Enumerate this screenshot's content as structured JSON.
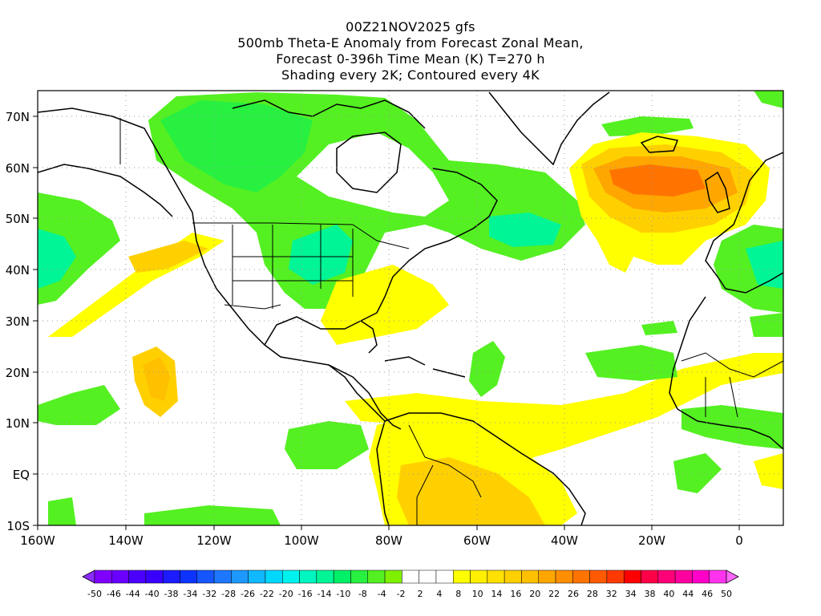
{
  "title": {
    "lines": [
      "00Z21NOV2025 gfs",
      "500mb Theta-E Anomaly from Forecast Zonal Mean,",
      "Forecast 0-396h Time Mean (K) T=270 h",
      "Shading every 2K; Contoured every 4K"
    ]
  },
  "axes": {
    "lat_labels": [
      "70N",
      "60N",
      "50N",
      "40N",
      "30N",
      "20N",
      "10N",
      "EQ",
      "10S"
    ],
    "lon_labels": [
      "160W",
      "140W",
      "120W",
      "100W",
      "80W",
      "60W",
      "40W",
      "20W",
      "0"
    ]
  },
  "colorbar": {
    "labels": [
      "-50",
      "-46",
      "-44",
      "-40",
      "-38",
      "-34",
      "-32",
      "-28",
      "-26",
      "-22",
      "-20",
      "-16",
      "-14",
      "-10",
      "-8",
      "-4",
      "-2",
      "2",
      "4",
      "8",
      "10",
      "14",
      "16",
      "20",
      "22",
      "26",
      "28",
      "32",
      "34",
      "38",
      "40",
      "44",
      "46",
      "50"
    ],
    "colors": [
      "#7f00ff",
      "#6a00ff",
      "#4b00ff",
      "#3a00ff",
      "#1c1cff",
      "#0d34ff",
      "#1656ff",
      "#1d78ff",
      "#1c98ff",
      "#10b8ff",
      "#00d8ff",
      "#00f2ee",
      "#00f5c0",
      "#00f596",
      "#00f067",
      "#27f040",
      "#54f022",
      "#7ef000",
      "#ffffff",
      "#ffffff",
      "#ffffff",
      "#ffff00",
      "#fff000",
      "#ffe000",
      "#ffd000",
      "#ffc000",
      "#ffa600",
      "#ff8e00",
      "#ff7400",
      "#ff5a00",
      "#ff3a00",
      "#ff0000",
      "#ff0048",
      "#ff0078",
      "#ff00a0",
      "#ff00c8",
      "#ff33ee"
    ],
    "left_arrow_color": "#8a2bff",
    "right_arrow_color": "#ff66ff"
  }
}
